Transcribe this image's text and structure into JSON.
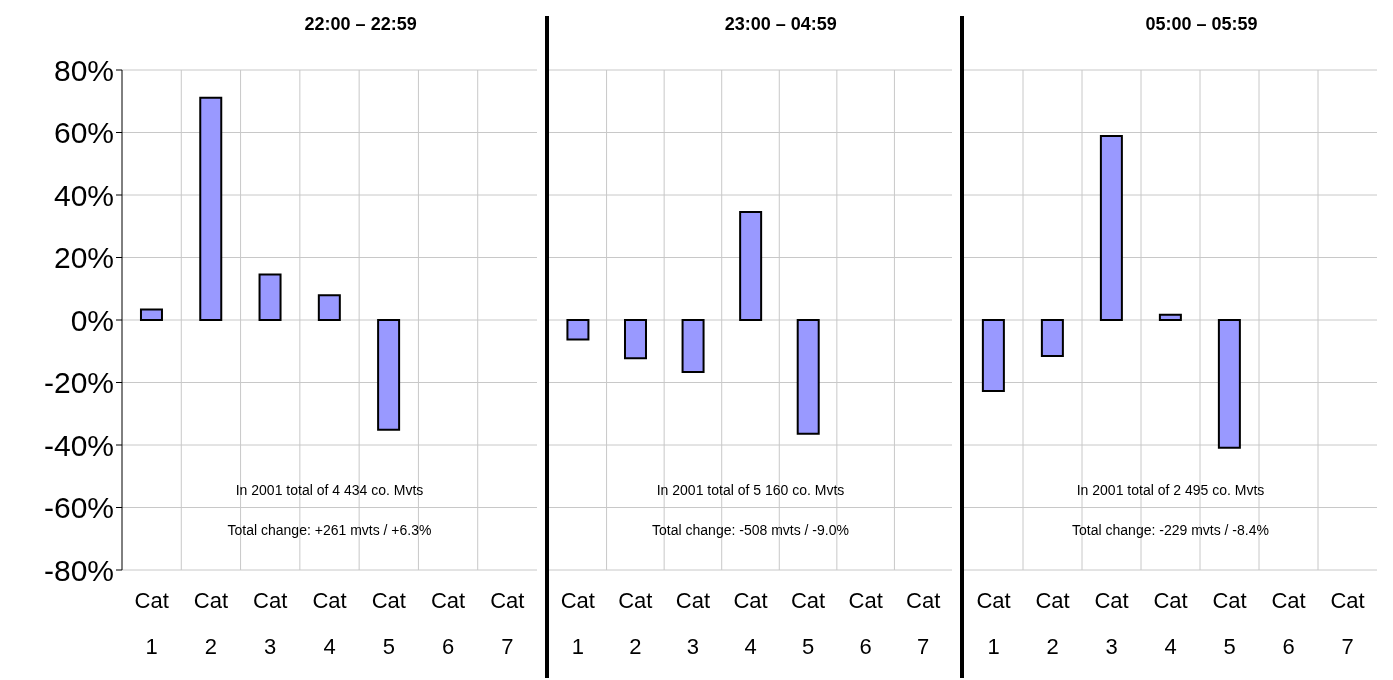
{
  "chart_data": [
    {
      "type": "bar",
      "title": "22:00 – 22:59",
      "categories": [
        "Cat 1",
        "Cat 2",
        "Cat 3",
        "Cat 4",
        "Cat 5",
        "Cat 6",
        "Cat 7"
      ],
      "values": [
        3.4,
        71.1,
        14.6,
        7.9,
        -35.1,
        null,
        null
      ],
      "color": "#9999ff",
      "ylim": [
        -80,
        80
      ],
      "yticks": [
        {
          "value": -80,
          "label": "-80%"
        },
        {
          "value": -60,
          "label": "-60%"
        },
        {
          "value": -40,
          "label": "-40%"
        },
        {
          "value": -20,
          "label": "-20%"
        },
        {
          "value": 0,
          "label": "0%"
        },
        {
          "value": 20,
          "label": "20%"
        },
        {
          "value": 40,
          "label": "40%"
        },
        {
          "value": 60,
          "label": "60%"
        },
        {
          "value": 80,
          "label": "80%"
        }
      ],
      "grid": true,
      "annotations": [
        "In 2001 total of 4 434 co. Mvts",
        "Total change: +261 mvts / +6.3%"
      ]
    },
    {
      "type": "bar",
      "title": "23:00 – 04:59",
      "categories": [
        "Cat 1",
        "Cat 2",
        "Cat 3",
        "Cat 4",
        "Cat 5",
        "Cat 6",
        "Cat 7"
      ],
      "values": [
        -6.2,
        -12.2,
        -16.6,
        34.6,
        -36.4,
        null,
        null
      ],
      "color": "#9999ff",
      "ylim": [
        -80,
        80
      ],
      "yticks": [
        -80,
        -60,
        -40,
        -20,
        0,
        20,
        40,
        60,
        80
      ],
      "grid": true,
      "tick_labels": "x",
      "annotations": [
        "In 2001 total of 5 160 co. Mvts",
        "Total change: -508 mvts / -9.0%"
      ]
    },
    {
      "type": "bar",
      "title": "05:00 – 05:59",
      "categories": [
        "Cat 1",
        "Cat 2",
        "Cat 3",
        "Cat 4",
        "Cat 5",
        "Cat 6",
        "Cat 7"
      ],
      "values": [
        -22.7,
        -11.5,
        58.9,
        1.7,
        -40.9,
        null,
        null
      ],
      "color": "#9999ff",
      "ylim": [
        -80,
        80
      ],
      "yticks": [
        -80,
        -60,
        -40,
        -20,
        0,
        20,
        40,
        60,
        80
      ],
      "grid": true,
      "tick_labels": "x",
      "annotations": [
        "In 2001 total of 2 495 co. Mvts",
        "Total change: -229 mvts / -8.4%"
      ]
    }
  ]
}
